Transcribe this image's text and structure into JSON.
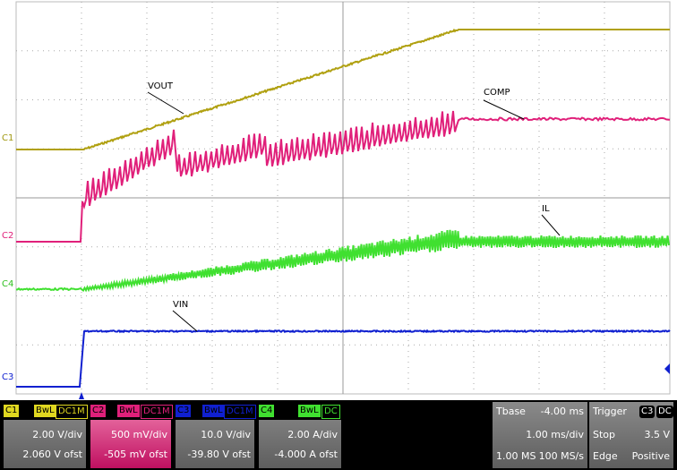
{
  "channel_markers": [
    "C1",
    "C2",
    "C4",
    "C3"
  ],
  "waveform_labels": [
    "VOUT",
    "COMP",
    "IL",
    "VIN"
  ],
  "channels": [
    {
      "name": "C1",
      "bandwidth": "BwL",
      "coupling": "DC1M",
      "scale": "2.00 V/div",
      "offset": "2.060 V ofst"
    },
    {
      "name": "C2",
      "bandwidth": "BwL",
      "coupling": "DC1M",
      "scale": "500 mV/div",
      "offset": "-505 mV ofst"
    },
    {
      "name": "C3",
      "bandwidth": "BwL",
      "coupling": "DC1M",
      "scale": "10.0 V/div",
      "offset": "-39.80 V ofst"
    },
    {
      "name": "C4",
      "bandwidth": "BwL",
      "coupling": "DC",
      "scale": "2.00 A/div",
      "offset": "-4.000 A ofst"
    }
  ],
  "timebase": {
    "label": "Tbase",
    "delay": "-4.00 ms",
    "scale": "1.00 ms/div",
    "memory": "1.00 MS",
    "sample_rate": "100 MS/s"
  },
  "trigger": {
    "label": "Trigger",
    "source": "C3",
    "coupling": "DC",
    "mode": "Stop",
    "level": "3.5 V",
    "type": "Edge",
    "slope": "Positive"
  }
}
